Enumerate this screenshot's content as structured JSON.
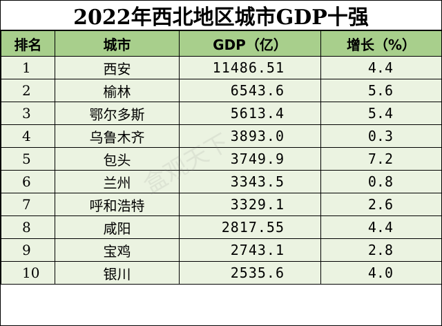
{
  "title": "2022年西北地区城市GDP十强",
  "headers": [
    "排名",
    "城市",
    "GDP（亿）",
    "增长（%）"
  ],
  "rows": [
    {
      "rank": "1",
      "city": "西安",
      "gdp": "11486.51",
      "growth": "4.4"
    },
    {
      "rank": "2",
      "city": "榆林",
      "gdp": "6543.6",
      "growth": "5.6"
    },
    {
      "rank": "3",
      "city": "鄂尔多斯",
      "gdp": "5613.4",
      "growth": "5.4"
    },
    {
      "rank": "4",
      "city": "乌鲁木齐",
      "gdp": "3893.0",
      "growth": "0.3"
    },
    {
      "rank": "5",
      "city": "包头",
      "gdp": "3749.9",
      "growth": "7.2"
    },
    {
      "rank": "6",
      "city": "兰州",
      "gdp": "3343.5",
      "growth": "0.8"
    },
    {
      "rank": "7",
      "city": "呼和浩特",
      "gdp": "3329.1",
      "growth": "2.6"
    },
    {
      "rank": "8",
      "city": "咸阳",
      "gdp": "2817.55",
      "growth": "4.4"
    },
    {
      "rank": "9",
      "city": "宝鸡",
      "gdp": "2743.1",
      "growth": "2.8"
    },
    {
      "rank": "10",
      "city": "银川",
      "gdp": "2535.6",
      "growth": "4.0"
    }
  ],
  "watermark": "盒观天下",
  "colors": {
    "header_bg": "#a8cf8c",
    "row_bg": "#ebf3e1"
  }
}
